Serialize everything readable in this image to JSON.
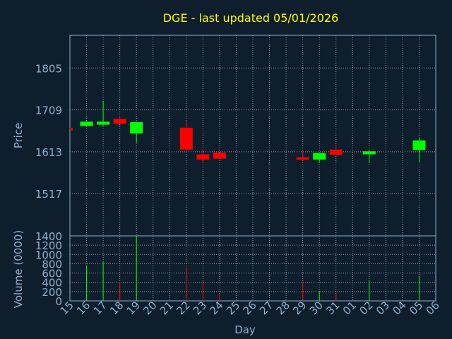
{
  "chart_data": {
    "type": "candlestick",
    "title": "DGE - last updated 05/01/2026",
    "price_panel": {
      "ylabel": "Price",
      "yticks": [
        1517,
        1613,
        1709,
        1805
      ],
      "ylim": [
        1420,
        1880
      ]
    },
    "volume_panel": {
      "ylabel": "Volume (0000)",
      "yticks": [
        0,
        200,
        400,
        600,
        800,
        1000,
        1200,
        1400
      ],
      "ylim": [
        0,
        1400
      ]
    },
    "xlabel": "Day",
    "x_ticks": [
      "15",
      "16",
      "17",
      "18",
      "19",
      "20",
      "21",
      "22",
      "23",
      "24",
      "25",
      "26",
      "27",
      "28",
      "29",
      "30",
      "31",
      "01",
      "02",
      "03",
      "04",
      "05",
      "06"
    ],
    "candles": [
      {
        "day": "15",
        "open": 1667,
        "high": 1667,
        "low": 1664,
        "close": 1664,
        "volume": 0
      },
      {
        "day": "16",
        "open": 1672,
        "high": 1683,
        "low": 1672,
        "close": 1682,
        "volume": 760
      },
      {
        "day": "17",
        "open": 1675,
        "high": 1730,
        "low": 1672,
        "close": 1682,
        "volume": 860
      },
      {
        "day": "18",
        "open": 1688,
        "high": 1695,
        "low": 1676,
        "close": 1677,
        "volume": 400
      },
      {
        "day": "19",
        "open": 1655,
        "high": 1682,
        "low": 1634,
        "close": 1681,
        "volume": 1400
      },
      {
        "day": "22",
        "open": 1668,
        "high": 1683,
        "low": 1616,
        "close": 1618,
        "volume": 720
      },
      {
        "day": "23",
        "open": 1607,
        "high": 1619,
        "low": 1593,
        "close": 1595,
        "volume": 420
      },
      {
        "day": "24",
        "open": 1611,
        "high": 1611,
        "low": 1597,
        "close": 1597,
        "volume": 140
      },
      {
        "day": "29",
        "open": 1600,
        "high": 1614,
        "low": 1597,
        "close": 1597,
        "volume": 420
      },
      {
        "day": "30",
        "open": 1595,
        "high": 1610,
        "low": 1589,
        "close": 1610,
        "volume": 200
      },
      {
        "day": "31",
        "open": 1618,
        "high": 1620,
        "low": 1605,
        "close": 1606,
        "volume": 160
      },
      {
        "day": "02",
        "open": 1607,
        "high": 1616,
        "low": 1588,
        "close": 1614,
        "volume": 440
      },
      {
        "day": "05",
        "open": 1617,
        "high": 1644,
        "low": 1590,
        "close": 1639,
        "volume": 530
      }
    ],
    "grid": true,
    "colors": {
      "up": "#00ff00",
      "down": "#ff0000",
      "background": "#0f1e2d",
      "frame": "#8fb0cc",
      "title": "#ffff00",
      "grid": "#ffffff"
    }
  }
}
